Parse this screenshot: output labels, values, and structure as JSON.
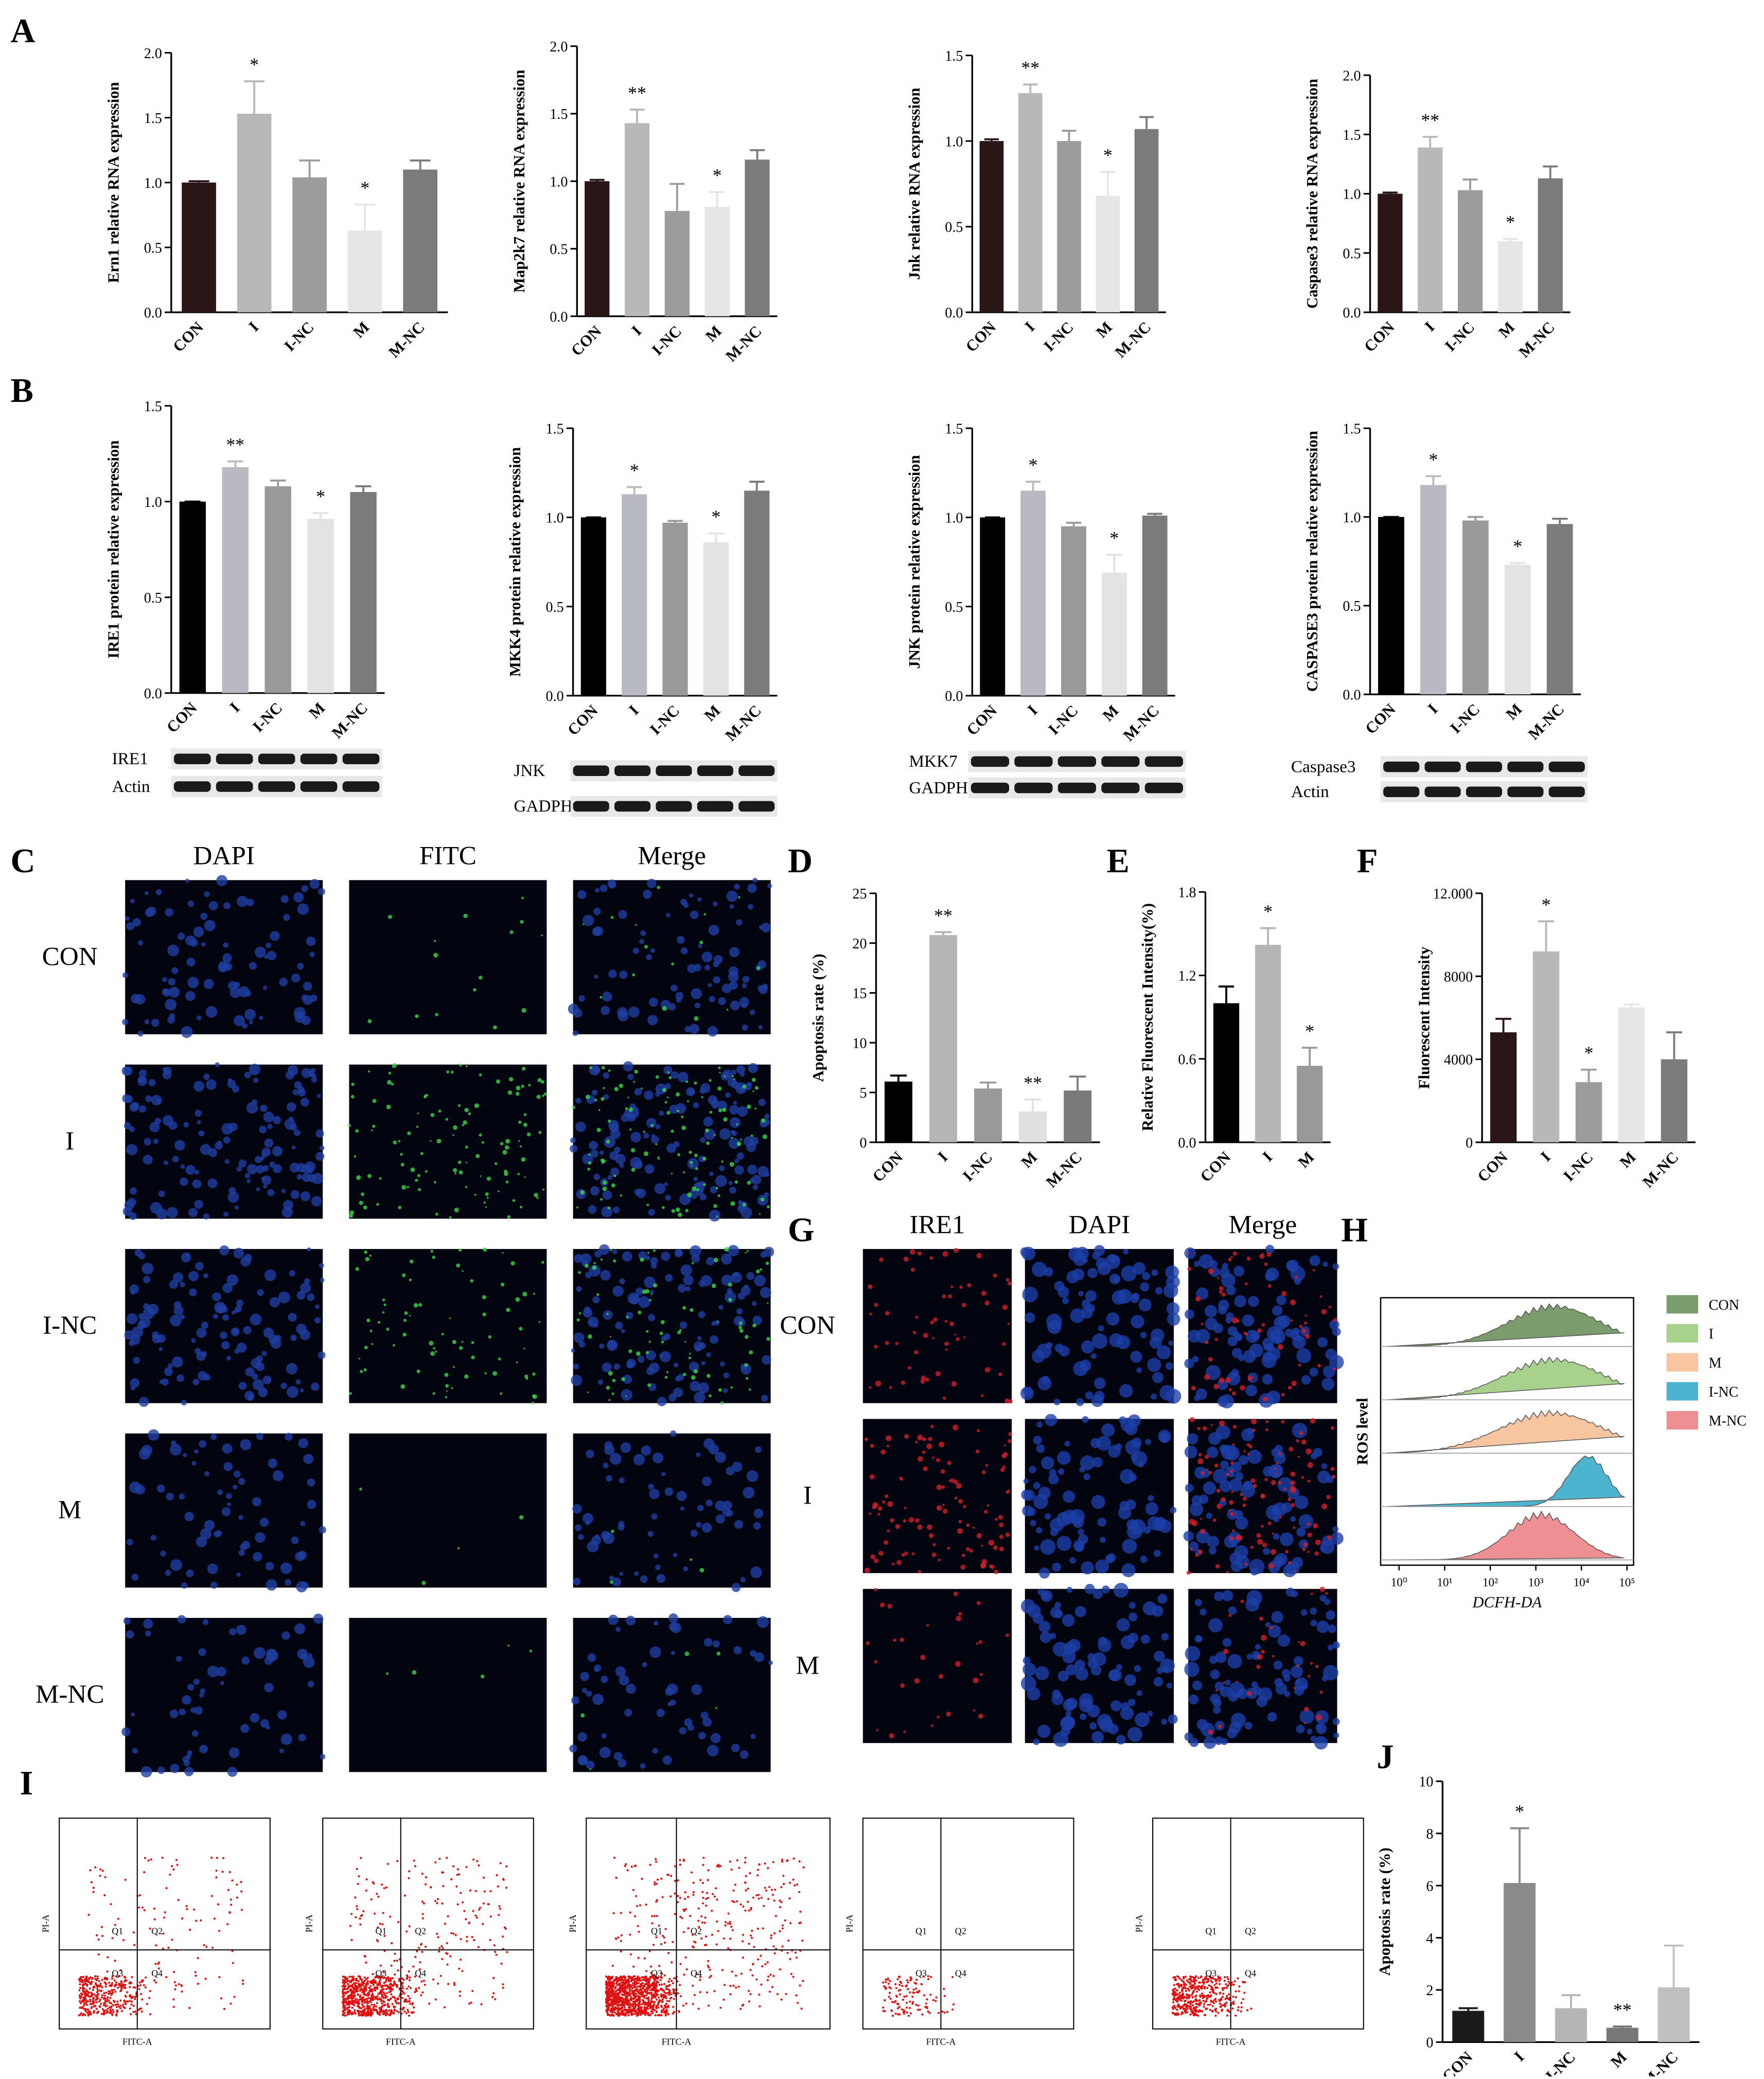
{
  "panel_labels": [
    "A",
    "B",
    "C",
    "D",
    "E",
    "F",
    "G",
    "H",
    "I",
    "J"
  ],
  "chart_data": [
    {
      "type": "bar",
      "ylabel": "Ern1 relative RNA expression",
      "categories": [
        "CON",
        "I",
        "I-NC",
        "M",
        "M-NC"
      ],
      "values": [
        1.0,
        1.53,
        1.04,
        0.63,
        1.1
      ],
      "errors": [
        0.01,
        0.25,
        0.13,
        0.2,
        0.07
      ],
      "colors": [
        "#2a1616",
        "#b8b8b8",
        "#9c9c9c",
        "#e6e6e6",
        "#7b7b7b"
      ],
      "annotations": [
        null,
        "*",
        null,
        "*",
        null
      ],
      "ylim": [
        0,
        2
      ],
      "yticks": [
        {
          "value": 0,
          "label": "0.0"
        },
        0.5,
        {
          "value": 1,
          "label": "1.0"
        },
        1.5,
        {
          "value": 2,
          "label": "2.0"
        }
      ]
    },
    {
      "type": "bar",
      "ylabel": "Map2k7 relative RNA expression",
      "categories": [
        "CON",
        "I",
        "I-NC",
        "M",
        "M-NC"
      ],
      "values": [
        1.0,
        1.43,
        0.78,
        0.81,
        1.16
      ],
      "errors": [
        0.01,
        0.1,
        0.2,
        0.11,
        0.07
      ],
      "colors": [
        "#2a1616",
        "#b8b8b8",
        "#9c9c9c",
        "#e6e6e6",
        "#7b7b7b"
      ],
      "annotations": [
        null,
        "**",
        null,
        "*",
        null
      ],
      "ylim": [
        0,
        2
      ],
      "yticks": [
        {
          "value": 0,
          "label": "0.0"
        },
        0.5,
        {
          "value": 1,
          "label": "1.0"
        },
        1.5,
        {
          "value": 2,
          "label": "2.0"
        }
      ]
    },
    {
      "type": "bar",
      "ylabel": "Jnk relative RNA expression",
      "categories": [
        "CON",
        "I",
        "I-NC",
        "M",
        "M-NC"
      ],
      "values": [
        1.0,
        1.28,
        1.0,
        0.68,
        1.07
      ],
      "errors": [
        0.01,
        0.05,
        0.06,
        0.14,
        0.07
      ],
      "colors": [
        "#2a1616",
        "#b8b8b8",
        "#9c9c9c",
        "#e6e6e6",
        "#7b7b7b"
      ],
      "annotations": [
        null,
        "**",
        null,
        "*",
        null
      ],
      "ylim": [
        0,
        1.5
      ],
      "yticks": [
        {
          "value": 0,
          "label": "0.0"
        },
        0.5,
        {
          "value": 1,
          "label": "1.0"
        },
        1.5
      ]
    },
    {
      "type": "bar",
      "ylabel": "Caspase3 relative RNA expression",
      "categories": [
        "CON",
        "I",
        "I-NC",
        "M",
        "M-NC"
      ],
      "values": [
        1.0,
        1.39,
        1.03,
        0.6,
        1.13
      ],
      "errors": [
        0.01,
        0.09,
        0.09,
        0.02,
        0.1
      ],
      "colors": [
        "#2a1616",
        "#b8b8b8",
        "#9c9c9c",
        "#e6e6e6",
        "#7b7b7b"
      ],
      "annotations": [
        null,
        "**",
        null,
        "*",
        null
      ],
      "ylim": [
        0,
        2
      ],
      "yticks": [
        {
          "value": 0,
          "label": "0.0"
        },
        0.5,
        {
          "value": 1,
          "label": "1.0"
        },
        1.5,
        {
          "value": 2,
          "label": "2.0"
        }
      ]
    },
    {
      "type": "bar",
      "ylabel": "IRE1 protein relative expression",
      "categories": [
        "CON",
        "I",
        "I-NC",
        "M",
        "M-NC"
      ],
      "values": [
        1.0,
        1.18,
        1.08,
        0.91,
        1.05
      ],
      "errors": [
        0.0,
        0.03,
        0.03,
        0.03,
        0.03
      ],
      "colors": [
        "#000000",
        "#b9b9c2",
        "#9a9a9a",
        "#e3e3e3",
        "#7b7b7b"
      ],
      "annotations": [
        null,
        "**",
        null,
        "*",
        null
      ],
      "ylim": [
        0,
        1.5
      ],
      "yticks": [
        {
          "value": 0,
          "label": "0.0"
        },
        0.5,
        {
          "value": 1,
          "label": "1.0"
        },
        1.5
      ]
    },
    {
      "type": "bar",
      "ylabel": "MKK4 protein relative expression",
      "categories": [
        "CON",
        "I",
        "I-NC",
        "M",
        "M-NC"
      ],
      "values": [
        1.0,
        1.13,
        0.97,
        0.86,
        1.15
      ],
      "errors": [
        0.0,
        0.04,
        0.01,
        0.05,
        0.05
      ],
      "colors": [
        "#000000",
        "#b9b9c2",
        "#9a9a9a",
        "#e3e3e3",
        "#7b7b7b"
      ],
      "annotations": [
        null,
        "*",
        null,
        "*",
        null
      ],
      "ylim": [
        0,
        1.5
      ],
      "yticks": [
        {
          "value": 0,
          "label": "0.0"
        },
        0.5,
        {
          "value": 1,
          "label": "1.0"
        },
        1.5
      ]
    },
    {
      "type": "bar",
      "ylabel": "JNK protein relative expression",
      "categories": [
        "CON",
        "I",
        "I-NC",
        "M",
        "M-NC"
      ],
      "values": [
        1.0,
        1.15,
        0.95,
        0.69,
        1.01
      ],
      "errors": [
        0.0,
        0.05,
        0.02,
        0.1,
        0.01
      ],
      "colors": [
        "#000000",
        "#b9b9c2",
        "#9a9a9a",
        "#e3e3e3",
        "#7b7b7b"
      ],
      "annotations": [
        null,
        "*",
        null,
        "*",
        null
      ],
      "ylim": [
        0,
        1.5
      ],
      "yticks": [
        {
          "value": 0,
          "label": "0.0"
        },
        0.5,
        {
          "value": 1,
          "label": "1.0"
        },
        1.5
      ]
    },
    {
      "type": "bar",
      "ylabel": "CASPASE3 protein relative expression",
      "categories": [
        "CON",
        "I",
        "I-NC",
        "M",
        "M-NC"
      ],
      "values": [
        1.0,
        1.18,
        0.98,
        0.73,
        0.96
      ],
      "errors": [
        0.0,
        0.05,
        0.02,
        0.01,
        0.03
      ],
      "colors": [
        "#000000",
        "#b9b9c2",
        "#9a9a9a",
        "#e3e3e3",
        "#7b7b7b"
      ],
      "annotations": [
        null,
        "*",
        null,
        "*",
        null
      ],
      "ylim": [
        0,
        1.5
      ],
      "yticks": [
        {
          "value": 0,
          "label": "0.0"
        },
        0.5,
        {
          "value": 1,
          "label": "1.0"
        },
        1.5
      ]
    },
    {
      "type": "bar",
      "ylabel": "Apoptosis rate (%)",
      "categories": [
        "CON",
        "I",
        "I-NC",
        "M",
        "M-NC"
      ],
      "values": [
        6.1,
        20.8,
        5.4,
        3.1,
        5.2
      ],
      "errors": [
        0.6,
        0.3,
        0.6,
        1.2,
        1.4
      ],
      "colors": [
        "#000000",
        "#b5b5b5",
        "#999999",
        "#e0e0e0",
        "#7a7a7a"
      ],
      "annotations": [
        null,
        "**",
        null,
        "**",
        null
      ],
      "ylim": [
        0,
        25
      ],
      "yticks": [
        0,
        5,
        10,
        15,
        20,
        25
      ]
    },
    {
      "type": "bar",
      "ylabel": "Relative Fluorescent Intensity(%)",
      "categories": [
        "CON",
        "I",
        "M"
      ],
      "values": [
        1.0,
        1.42,
        0.55
      ],
      "errors": [
        0.12,
        0.12,
        0.13
      ],
      "colors": [
        "#000000",
        "#b5b5b5",
        "#999999"
      ],
      "annotations": [
        null,
        "*",
        "*"
      ],
      "ylim": [
        0,
        1.8
      ],
      "yticks": [
        {
          "value": 0,
          "label": "0.0"
        },
        0.6,
        1.2,
        1.8
      ]
    },
    {
      "type": "bar",
      "ylabel": "Fluorescent Intensity",
      "categories": [
        "CON",
        "I",
        "I-NC",
        "M",
        "M-NC"
      ],
      "values": [
        5300,
        9200,
        2900,
        6500,
        4000
      ],
      "errors": [
        650,
        1450,
        600,
        150,
        1300
      ],
      "colors": [
        "#2a1616",
        "#b8b8b8",
        "#9c9c9c",
        "#e6e6e6",
        "#7b7b7b"
      ],
      "annotations": [
        null,
        "*",
        "*",
        null,
        null
      ],
      "ylim": [
        0,
        12000
      ],
      "yticks": [
        0,
        4000,
        8000,
        {
          "value": 12000,
          "label": "12.000"
        }
      ]
    },
    {
      "type": "bar",
      "ylabel": "Apoptosis rate (%)",
      "categories": [
        "CON",
        "I",
        "I-NC",
        "M",
        "M-NC"
      ],
      "values": [
        1.2,
        6.1,
        1.3,
        0.55,
        2.1
      ],
      "errors": [
        0.1,
        2.1,
        0.5,
        0.05,
        1.6
      ],
      "colors": [
        "#1a1a1a",
        "#8a8a8a",
        "#b5b5b5",
        "#777777",
        "#c0c0c0"
      ],
      "annotations": [
        null,
        "*",
        null,
        "**",
        null
      ],
      "ylim": [
        0,
        10
      ],
      "yticks": [
        0,
        2,
        4,
        6,
        8,
        10
      ]
    }
  ],
  "western_blots": [
    {
      "labels": [
        "IRE1",
        "Actin"
      ]
    },
    {
      "labels": [
        "JNK",
        "GADPH"
      ]
    },
    {
      "labels": [
        "MKK7",
        "GADPH"
      ]
    },
    {
      "labels": [
        "Caspase3",
        "Actin"
      ]
    }
  ],
  "panel_c": {
    "columns": [
      "DAPI",
      "FITC",
      "Merge"
    ],
    "rows": [
      "CON",
      "I",
      "I-NC",
      "M",
      "M-NC"
    ]
  },
  "panel_g": {
    "columns": [
      "IRE1",
      "DAPI",
      "Merge"
    ],
    "rows": [
      "CON",
      "I",
      "M"
    ]
  },
  "panel_h": {
    "ylabel": "ROS level",
    "xlabel": "DCFH-DA",
    "xticks": [
      "10⁰",
      "10¹",
      "10²",
      "10³",
      "10⁴",
      "10⁵"
    ],
    "legend": [
      {
        "name": "CON",
        "color": "#7b9c6c"
      },
      {
        "name": "I",
        "color": "#a9d18e"
      },
      {
        "name": "M",
        "color": "#f7c59f"
      },
      {
        "name": "I-NC",
        "color": "#4db4d0"
      },
      {
        "name": "M-NC",
        "color": "#ee8f93"
      }
    ]
  },
  "panel_i": {
    "quadrants": [
      "Q1",
      "Q2",
      "Q3",
      "Q4"
    ],
    "xlabel": "FITC-A",
    "ylabel": "PI-A"
  }
}
